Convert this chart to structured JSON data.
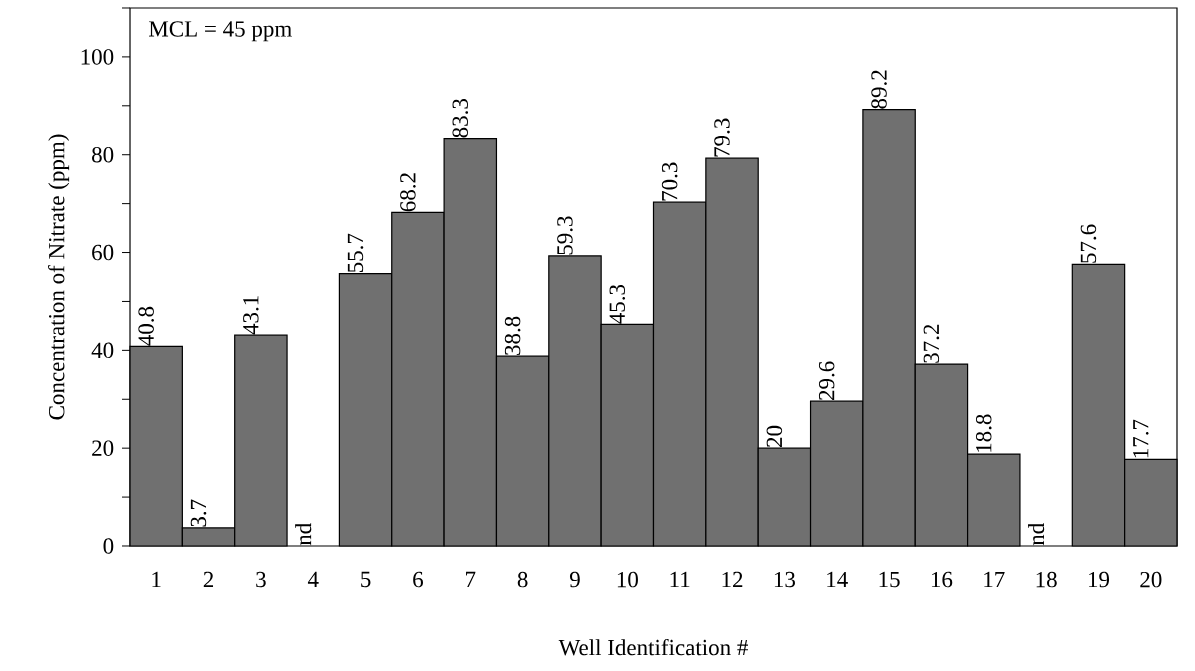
{
  "chart_data": {
    "type": "bar",
    "xlabel": "Well Identification #",
    "ylabel": "Concentration of Nitrate (ppm)",
    "annotations": [
      "MCL = 45 ppm"
    ],
    "categories": [
      "1",
      "2",
      "3",
      "4",
      "5",
      "6",
      "7",
      "8",
      "9",
      "10",
      "11",
      "12",
      "13",
      "14",
      "15",
      "16",
      "17",
      "18",
      "19",
      "20"
    ],
    "values": [
      40.8,
      3.7,
      43.1,
      null,
      55.7,
      68.2,
      83.3,
      38.8,
      59.3,
      45.3,
      70.3,
      79.3,
      20,
      29.6,
      89.2,
      37.2,
      18.8,
      null,
      57.6,
      17.7
    ],
    "value_labels": [
      "40.8",
      "3.7",
      "43.1",
      "nd",
      "55.7",
      "68.2",
      "83.3",
      "38.8",
      "59.3",
      "45.3",
      "70.3",
      "79.3",
      "20",
      "29.6",
      "89.2",
      "37.2",
      "18.8",
      "nd",
      "57.6",
      "17.7"
    ],
    "color": "#707070",
    "ylim": [
      0,
      110
    ],
    "yticks": [
      0,
      {
        "value": 10,
        "label": null
      },
      20,
      {
        "value": 30,
        "label": null
      },
      40,
      {
        "value": 50,
        "label": null
      },
      60,
      {
        "value": 70,
        "label": null
      },
      80,
      {
        "value": 90,
        "label": null
      },
      100,
      {
        "value": 110,
        "label": null
      }
    ]
  }
}
